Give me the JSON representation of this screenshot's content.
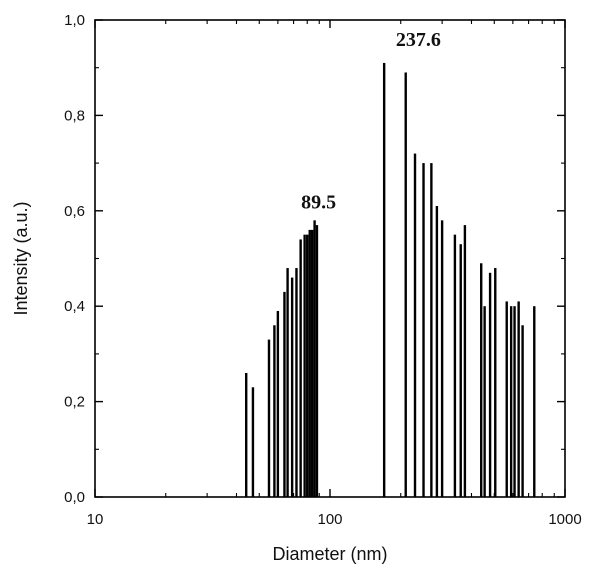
{
  "chart_data": {
    "type": "bar",
    "title": "",
    "xlabel": "Diameter (nm)",
    "ylabel": "Intensity (a.u.)",
    "x_scale": "log",
    "xlim": [
      10,
      1000
    ],
    "ylim": [
      0.0,
      1.0
    ],
    "grid": false,
    "x_ticks": [
      {
        "value": 10,
        "label": "10"
      },
      {
        "value": 100,
        "label": "100"
      },
      {
        "value": 1000,
        "label": "1000"
      }
    ],
    "y_ticks": [
      {
        "value": 0.0,
        "label": "0,0"
      },
      {
        "value": 0.2,
        "label": "0,2"
      },
      {
        "value": 0.4,
        "label": "0,4"
      },
      {
        "value": 0.6,
        "label": "0,6"
      },
      {
        "value": 0.8,
        "label": "0,8"
      },
      {
        "value": 1.0,
        "label": "1,0"
      }
    ],
    "bars": [
      {
        "x": 44,
        "y": 0.26
      },
      {
        "x": 47,
        "y": 0.23
      },
      {
        "x": 55,
        "y": 0.33
      },
      {
        "x": 58,
        "y": 0.36
      },
      {
        "x": 60,
        "y": 0.39
      },
      {
        "x": 64,
        "y": 0.43
      },
      {
        "x": 66,
        "y": 0.48
      },
      {
        "x": 69,
        "y": 0.46
      },
      {
        "x": 72,
        "y": 0.48
      },
      {
        "x": 75,
        "y": 0.54
      },
      {
        "x": 78,
        "y": 0.55
      },
      {
        "x": 80,
        "y": 0.55
      },
      {
        "x": 82,
        "y": 0.56
      },
      {
        "x": 84,
        "y": 0.56
      },
      {
        "x": 86,
        "y": 0.58
      },
      {
        "x": 88,
        "y": 0.57
      },
      {
        "x": 170,
        "y": 0.91
      },
      {
        "x": 210,
        "y": 0.89
      },
      {
        "x": 230,
        "y": 0.72
      },
      {
        "x": 250,
        "y": 0.7
      },
      {
        "x": 270,
        "y": 0.7
      },
      {
        "x": 285,
        "y": 0.61
      },
      {
        "x": 300,
        "y": 0.58
      },
      {
        "x": 340,
        "y": 0.55
      },
      {
        "x": 360,
        "y": 0.53
      },
      {
        "x": 375,
        "y": 0.57
      },
      {
        "x": 440,
        "y": 0.49
      },
      {
        "x": 455,
        "y": 0.4
      },
      {
        "x": 480,
        "y": 0.47
      },
      {
        "x": 505,
        "y": 0.48
      },
      {
        "x": 565,
        "y": 0.41
      },
      {
        "x": 590,
        "y": 0.4
      },
      {
        "x": 610,
        "y": 0.4
      },
      {
        "x": 635,
        "y": 0.41
      },
      {
        "x": 660,
        "y": 0.36
      },
      {
        "x": 740,
        "y": 0.4
      }
    ],
    "annotations": [
      {
        "text": "89.5",
        "x": 89.5,
        "y": 0.58
      },
      {
        "text": "237.6",
        "x": 237.6,
        "y": 0.92
      }
    ]
  }
}
